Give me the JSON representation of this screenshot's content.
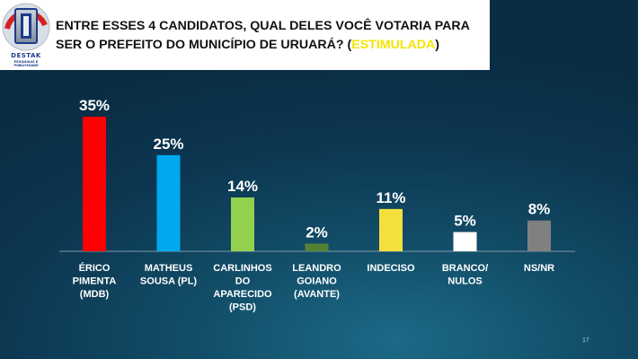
{
  "header": {
    "title_main": "ENTRE ESSES 4 CANDIDATOS, QUAL DELES VOCÊ VOTARIA PARA SER O PREFEITO DO MUNICÍPIO DE URUARÁ? (",
    "title_accent": "ESTIMULADA",
    "title_close": ")",
    "logo_name": "DESTAK",
    "logo_subtitle": "PESQUISAS E PUBLICIDADE"
  },
  "page_number": "17",
  "colors": {
    "title_accent": "#f4e400",
    "bars": [
      "#ff0000",
      "#00a8ef",
      "#92d050",
      "#548235",
      "#f4e03c",
      "#ffffff",
      "#808080"
    ]
  },
  "chart_data": {
    "type": "bar",
    "categories": [
      [
        "ÉRICO",
        "PIMENTA",
        "(MDB)"
      ],
      [
        "MATHEUS",
        "SOUSA (PL)"
      ],
      [
        "CARLINHOS",
        "DO",
        "APARECIDO",
        "(PSD)"
      ],
      [
        "LEANDRO",
        "GOIANO",
        "(AVANTE)"
      ],
      [
        "INDECISO"
      ],
      [
        "BRANCO/",
        "NULOS"
      ],
      [
        "NS/NR"
      ]
    ],
    "values": [
      35,
      25,
      14,
      2,
      11,
      5,
      8
    ],
    "data_labels": [
      "35%",
      "25%",
      "14%",
      "2%",
      "11%",
      "5%",
      "8%"
    ],
    "ylim": [
      0,
      35
    ],
    "grid": false,
    "legend": "none"
  }
}
